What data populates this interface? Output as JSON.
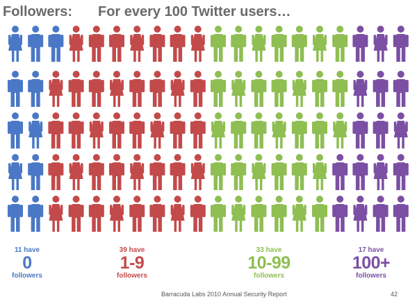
{
  "title": {
    "left": "Followers:",
    "right": "For every 100 Twitter users…"
  },
  "chart_data": {
    "type": "pictograph",
    "total": 100,
    "rows": 5,
    "columns": 20,
    "groups": [
      {
        "count": 11,
        "have": "11 have",
        "range": "0",
        "unit": "followers",
        "color": "#4a78c6"
      },
      {
        "count": 39,
        "have": "39 have",
        "range": "1-9",
        "unit": "followers",
        "color": "#c34a4a"
      },
      {
        "count": 33,
        "have": "33 have",
        "range": "10-99",
        "unit": "followers",
        "color": "#8fbe52"
      },
      {
        "count": 17,
        "have": "17 have",
        "range": "100+",
        "unit": "followers",
        "color": "#7b4fa3"
      }
    ]
  },
  "footer": {
    "source": "Barracuda Labs 2010 Annual Security Report",
    "page": "42"
  }
}
